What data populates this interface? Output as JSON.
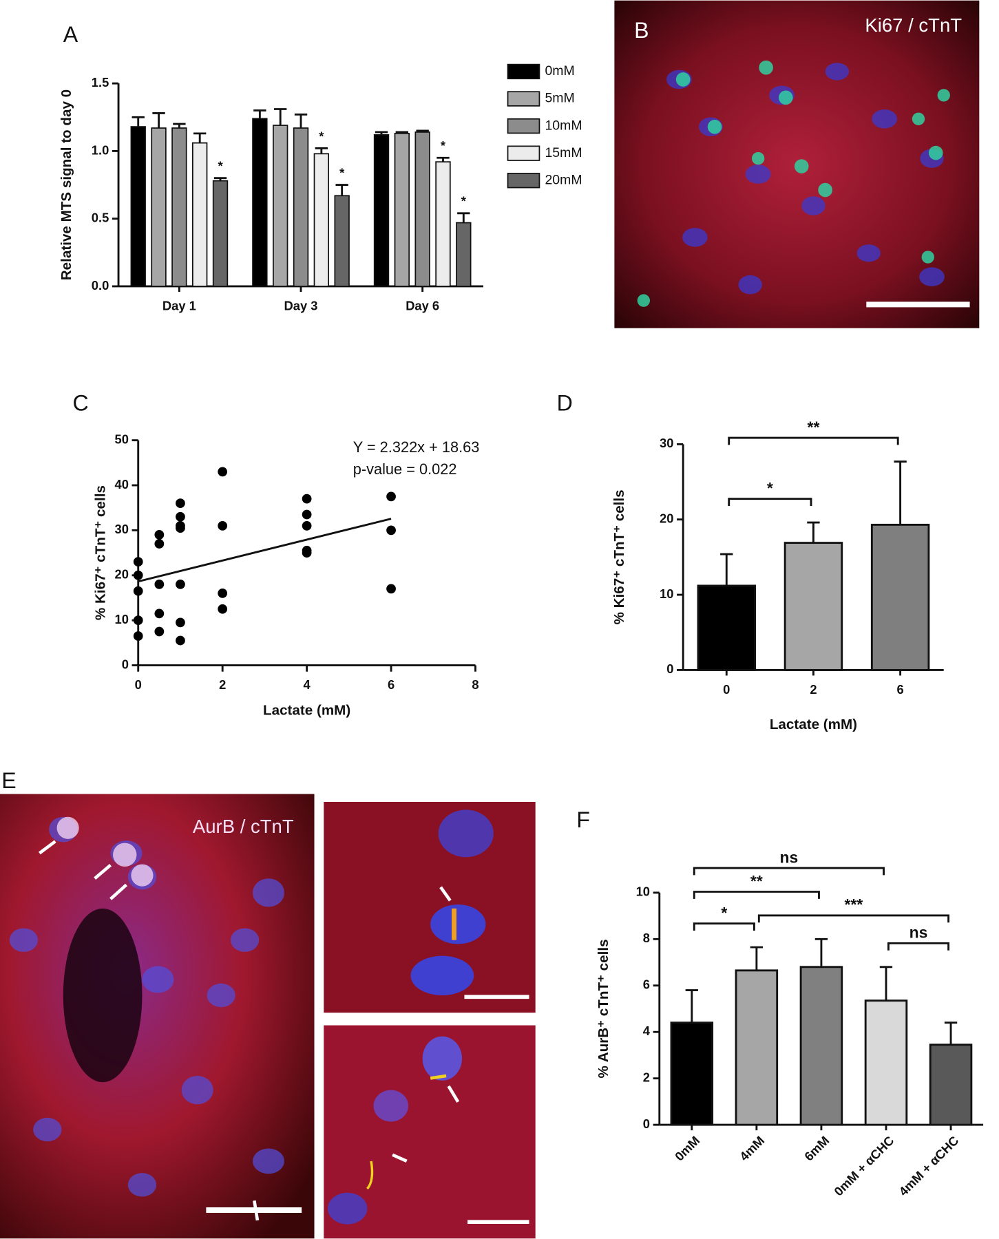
{
  "images": [
    {
      "panel": "B",
      "label": "Ki67 / cTnT"
    },
    {
      "panel": "E",
      "label": "AurB / cTnT"
    }
  ],
  "chart_data": [
    {
      "type": "bar",
      "panel": "A",
      "y_label": "Relative MTS signal to day 0",
      "categories": [
        "Day 1",
        "Day 3",
        "Day 6"
      ],
      "series": [
        {
          "name": "0mM",
          "color": "#000000",
          "values": [
            1.18,
            1.24,
            1.12
          ],
          "errors": [
            0.07,
            0.06,
            0.02
          ],
          "significance": [
            null,
            null,
            null
          ]
        },
        {
          "name": "5mM",
          "color": "#a6a6a6",
          "values": [
            1.17,
            1.19,
            1.13
          ],
          "errors": [
            0.11,
            0.12,
            0.01
          ],
          "significance": [
            null,
            null,
            null
          ]
        },
        {
          "name": "10mM",
          "color": "#8c8c8c",
          "values": [
            1.17,
            1.17,
            1.14
          ],
          "errors": [
            0.03,
            0.1,
            0.01
          ],
          "significance": [
            null,
            null,
            null
          ]
        },
        {
          "name": "15mM",
          "color": "#ececec",
          "values": [
            1.06,
            0.98,
            0.92
          ],
          "errors": [
            0.07,
            0.04,
            0.03
          ],
          "significance": [
            null,
            "*",
            "*"
          ]
        },
        {
          "name": "20mM",
          "color": "#666666",
          "values": [
            0.78,
            0.67,
            0.47
          ],
          "errors": [
            0.02,
            0.08,
            0.07
          ],
          "significance": [
            "*",
            "*",
            "*"
          ]
        }
      ],
      "ylim": [
        0,
        1.5
      ],
      "yticks": [
        {
          "value": 0,
          "label": "0.0"
        },
        0.5,
        {
          "value": 1,
          "label": "1.0"
        },
        1.5
      ],
      "legend": "right"
    },
    {
      "type": "scatter",
      "panel": "C",
      "y_label": "% Ki67⁺ cTnT⁺ cells",
      "x_label": "Lactate (mM)",
      "x": [
        0,
        0,
        0,
        0,
        0,
        0.5,
        0.5,
        0.5,
        0.5,
        0.5,
        1,
        1,
        1,
        1,
        1,
        1,
        1,
        2,
        2,
        2,
        2,
        4,
        4,
        4,
        4,
        4,
        6,
        6,
        6
      ],
      "values": [
        23,
        20,
        16.5,
        10,
        6.5,
        29,
        27,
        18,
        11.5,
        7.5,
        36,
        33,
        31,
        30.5,
        18,
        9.5,
        5.5,
        43,
        31,
        16,
        12.5,
        37,
        33.5,
        31,
        25.5,
        25,
        37.5,
        30,
        17
      ],
      "color": "#000000",
      "trendline": {
        "slope": 2.322,
        "intercept": 18.63
      },
      "annotations": [
        "Y = 2.322x + 18.63",
        "p-value = 0.022"
      ],
      "xlim": [
        0,
        8
      ],
      "xticks": [
        0,
        2,
        4,
        6,
        8
      ],
      "ylim": [
        0,
        50
      ],
      "yticks": [
        0,
        10,
        20,
        30,
        40,
        50
      ]
    },
    {
      "type": "bar",
      "panel": "D",
      "y_label": "% Ki67⁺ cTnT⁺ cells",
      "x_label": "Lactate (mM)",
      "categories": [
        "0",
        "2",
        "6"
      ],
      "values": [
        11.2,
        16.9,
        19.3
      ],
      "errors": [
        4.2,
        2.7,
        8.4
      ],
      "colors": [
        "#000000",
        "#a6a6a6",
        "#7f7f7f"
      ],
      "brackets": [
        {
          "between": [
            "0",
            "6"
          ],
          "label": "**"
        },
        {
          "between": [
            "0",
            "2"
          ],
          "label": "*"
        }
      ],
      "ylim": [
        0,
        30
      ],
      "yticks": [
        0,
        10,
        20,
        30
      ]
    },
    {
      "type": "bar",
      "panel": "F",
      "y_label": "% AurB⁺ cTnT⁺ cells",
      "categories": [
        "0mM",
        "4mM",
        "6mM",
        "0mM + αCHC",
        "4mM + αCHC"
      ],
      "values": [
        4.4,
        6.65,
        6.8,
        5.35,
        3.45
      ],
      "errors": [
        1.4,
        1.0,
        1.2,
        1.45,
        0.95
      ],
      "colors": [
        "#000000",
        "#a6a6a6",
        "#808080",
        "#d9d9d9",
        "#595959"
      ],
      "brackets": [
        {
          "between": [
            "0mM",
            "0mM + αCHC"
          ],
          "label": "ns"
        },
        {
          "between": [
            "0mM",
            "6mM"
          ],
          "label": "**"
        },
        {
          "between": [
            "0mM",
            "4mM"
          ],
          "label": "*"
        },
        {
          "between": [
            "4mM",
            "4mM + αCHC"
          ],
          "label": "***"
        },
        {
          "between": [
            "0mM + αCHC",
            "4mM + αCHC"
          ],
          "label": "ns"
        }
      ],
      "ylim": [
        0,
        10
      ],
      "yticks": [
        0,
        2,
        4,
        6,
        8,
        10
      ]
    }
  ]
}
